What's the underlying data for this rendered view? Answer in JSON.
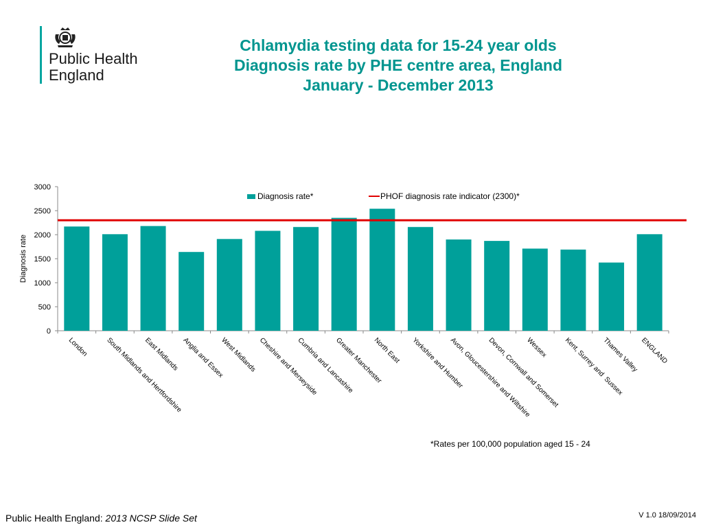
{
  "logo": {
    "line1": "Public Health",
    "line2": "England",
    "icon": "royal-crest-icon"
  },
  "title": {
    "line1": "Chlamydia testing data for 15-24 year olds",
    "line2": "Diagnosis rate by PHE centre area, England",
    "line3": "January - December 2013"
  },
  "colors": {
    "bar": "#00a09a",
    "indicator": "#e00000",
    "title": "#00958f"
  },
  "chart_data": {
    "type": "bar",
    "categories": [
      "London",
      "South Midlands and Hertfordshire",
      "East Midlands",
      "Anglia and Essex",
      "West Midlands",
      "Cheshire and Merseyside",
      "Cumbria and Lancashire",
      "Greater Manchester",
      "North East",
      "Yorkshire and Humber",
      "Avon, Gloucestershire and Wiltshire",
      "Devon, Cornwall and Somerset",
      "Wessex",
      "Kent, Surrey and  Sussex",
      "Thames Valley",
      "ENGLAND"
    ],
    "series": [
      {
        "name": "Diagnosis rate*",
        "values": [
          2170,
          2010,
          2180,
          1640,
          1910,
          2080,
          2160,
          2350,
          2540,
          2160,
          1900,
          1870,
          1710,
          1690,
          1420,
          2010
        ]
      }
    ],
    "reference_line": {
      "name": "PHOF diagnosis rate indicator (2300)*",
      "value": 2300
    },
    "ylabel": "Diagnosis rate",
    "xlabel": "",
    "ylim": [
      0,
      3000
    ],
    "yticks": [
      0,
      500,
      1000,
      1500,
      2000,
      2500,
      3000
    ],
    "legend_position": "top-center",
    "grid": false
  },
  "footnote": "*Rates per 100,000 population aged 15 - 24",
  "footer": {
    "org": "Public Health England:",
    "slide_set": "2013 NCSP Slide Set",
    "version": "V 1.0  18/09/2014"
  }
}
